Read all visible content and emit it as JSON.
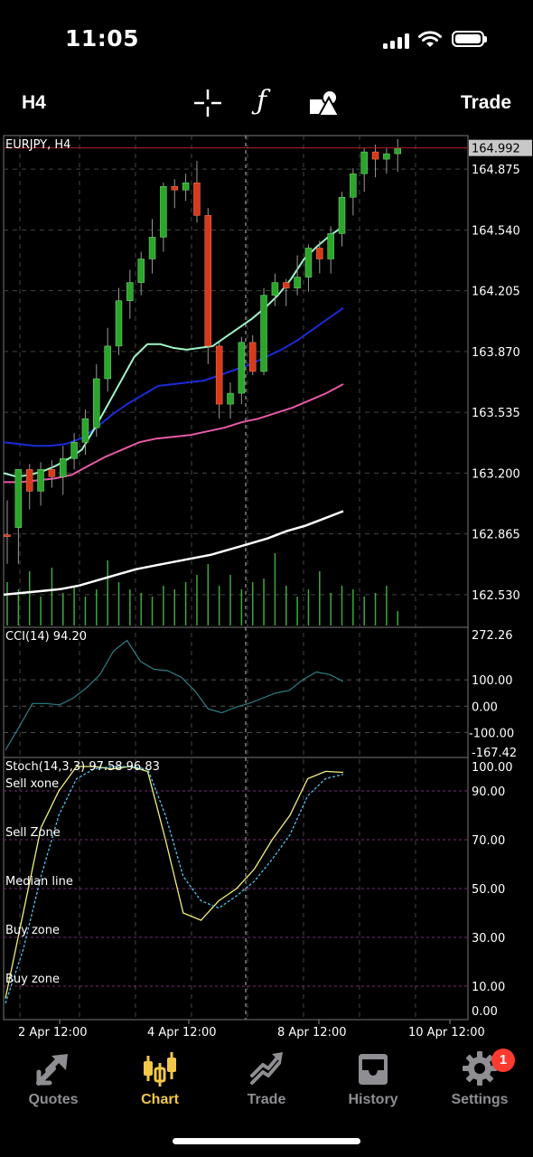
{
  "status": {
    "time": "11:05"
  },
  "toolbar": {
    "timeframe": "H4",
    "trade_label": "Trade",
    "function_label": "ƒ"
  },
  "chart": {
    "symbol_label": "EURJPY, H4",
    "current_price": "164.992",
    "price_ticks": [
      "164.875",
      "164.540",
      "164.205",
      "163.870",
      "163.535",
      "163.200",
      "162.865",
      "162.530"
    ],
    "cci_label": "CCI(14) 94.20",
    "cci_ticks": [
      "272.26",
      "100.00",
      "0.00",
      "-100.00",
      "-167.42"
    ],
    "stoch_label": "Stoch(14,3,3) 97.58 96.83",
    "stoch_ticks": [
      "100.00",
      "90.00",
      "70.00",
      "50.00",
      "30.00",
      "10.00",
      "0.00"
    ],
    "zone_labels": [
      "Sell xone",
      "Sell Zone",
      "Median line",
      "Buy zone",
      "Buy zone"
    ],
    "time_ticks": [
      "2 Apr 12:00",
      "4 Apr 12:00",
      "8 Apr 12:00",
      "10 Apr 12:00"
    ],
    "colors": {
      "bull": "#2ba52b",
      "bear": "#d63a1a",
      "ma_fast": "#9ff5c8",
      "ma_mid": "#1a2bd8",
      "ma_slow": "#e85aa8",
      "ma_long": "#ffffff",
      "volume": "#3fa83f",
      "cci": "#2f7f86",
      "stoch_main": "#f0f07a",
      "stoch_signal": "#4fc0e8",
      "price_line": "#b02020"
    }
  },
  "chart_data": {
    "type": "candlestick",
    "symbol": "EURJPY",
    "timeframe": "H4",
    "ylim": [
      162.35,
      165.06
    ],
    "candles": [
      [
        162.86,
        163.05,
        162.85,
        162.7
      ],
      [
        162.9,
        163.22,
        163.22,
        162.7
      ],
      [
        163.22,
        163.25,
        163.1,
        163.0
      ],
      [
        163.1,
        163.26,
        163.22,
        163.02
      ],
      [
        163.22,
        163.27,
        163.18,
        163.12
      ],
      [
        163.18,
        163.35,
        163.28,
        163.08
      ],
      [
        163.28,
        163.42,
        163.37,
        163.22
      ],
      [
        163.37,
        163.55,
        163.5,
        163.3
      ],
      [
        163.45,
        163.8,
        163.72,
        163.4
      ],
      [
        163.72,
        164.0,
        163.9,
        163.65
      ],
      [
        163.9,
        164.22,
        164.15,
        163.85
      ],
      [
        164.15,
        164.32,
        164.25,
        164.05
      ],
      [
        164.25,
        164.42,
        164.38,
        164.18
      ],
      [
        164.38,
        164.6,
        164.5,
        164.3
      ],
      [
        164.5,
        164.8,
        164.78,
        164.42
      ],
      [
        164.78,
        164.82,
        164.76,
        164.66
      ],
      [
        164.76,
        164.85,
        164.8,
        164.7
      ],
      [
        164.8,
        164.92,
        164.62,
        164.58
      ],
      [
        164.62,
        164.66,
        163.9,
        163.8
      ],
      [
        163.9,
        163.92,
        163.58,
        163.5
      ],
      [
        163.58,
        163.7,
        163.64,
        163.5
      ],
      [
        163.64,
        163.95,
        163.92,
        163.58
      ],
      [
        163.92,
        163.96,
        163.76,
        163.74
      ],
      [
        163.76,
        164.22,
        164.18,
        163.74
      ],
      [
        164.18,
        164.3,
        164.25,
        164.12
      ],
      [
        164.25,
        164.27,
        164.22,
        164.12
      ],
      [
        164.22,
        164.4,
        164.28,
        164.18
      ],
      [
        164.28,
        164.46,
        164.44,
        164.2
      ],
      [
        164.44,
        164.48,
        164.38,
        164.3
      ],
      [
        164.38,
        164.56,
        164.52,
        164.3
      ],
      [
        164.52,
        164.75,
        164.72,
        164.45
      ],
      [
        164.72,
        164.88,
        164.85,
        164.62
      ],
      [
        164.85,
        164.99,
        164.97,
        164.75
      ],
      [
        164.97,
        165.01,
        164.93,
        164.83
      ],
      [
        164.93,
        164.99,
        164.96,
        164.85
      ],
      [
        164.96,
        165.04,
        164.99,
        164.86
      ]
    ],
    "ma_fast": [
      163.2,
      163.18,
      163.19,
      163.21,
      163.24,
      163.28,
      163.33,
      163.45,
      163.58,
      163.71,
      163.84,
      163.91,
      163.91,
      163.89,
      163.88,
      163.89,
      163.9,
      163.95,
      164.0,
      164.05,
      164.11,
      164.18,
      164.27,
      164.38,
      164.45,
      164.51,
      164.56
    ],
    "ma_mid": [
      163.37,
      163.36,
      163.35,
      163.35,
      163.36,
      163.39,
      163.45,
      163.52,
      163.58,
      163.63,
      163.68,
      163.69,
      163.7,
      163.71,
      163.74,
      163.77,
      163.8,
      163.84,
      163.88,
      163.93,
      163.99,
      164.05,
      164.11
    ],
    "ma_slow": [
      163.15,
      163.15,
      163.16,
      163.17,
      163.19,
      163.24,
      163.29,
      163.33,
      163.37,
      163.39,
      163.4,
      163.41,
      163.43,
      163.45,
      163.48,
      163.5,
      163.53,
      163.56,
      163.6,
      163.64,
      163.69
    ],
    "ma_long": [
      162.53,
      162.54,
      162.55,
      162.56,
      162.58,
      162.61,
      162.64,
      162.67,
      162.69,
      162.71,
      162.73,
      162.75,
      162.78,
      162.81,
      162.84,
      162.88,
      162.91,
      162.95,
      162.99
    ],
    "volume": [
      0.6,
      0.5,
      0.75,
      0.4,
      0.8,
      0.45,
      0.55,
      0.4,
      0.5,
      0.9,
      0.6,
      0.5,
      0.45,
      0.4,
      0.55,
      0.5,
      0.6,
      0.7,
      0.85,
      0.55,
      0.7,
      0.5,
      0.6,
      0.65,
      1.0,
      0.55,
      0.4,
      0.5,
      0.75,
      0.45,
      0.55,
      0.5,
      0.4,
      0.45,
      0.55,
      0.2
    ],
    "cci": [
      -167,
      -80,
      10,
      10,
      5,
      30,
      70,
      120,
      210,
      250,
      170,
      140,
      135,
      110,
      60,
      -10,
      -25,
      -5,
      10,
      30,
      50,
      60,
      100,
      130,
      120,
      94
    ],
    "cci_ylim": [
      -167.42,
      272.26
    ],
    "stoch_main": [
      5,
      40,
      75,
      90,
      100,
      100,
      99,
      100,
      98,
      70,
      40,
      37,
      45,
      50,
      58,
      70,
      80,
      95,
      98,
      97.58
    ],
    "stoch_signal": [
      3,
      25,
      55,
      80,
      95,
      99,
      100,
      100,
      99,
      80,
      55,
      45,
      42,
      47,
      53,
      62,
      72,
      88,
      95,
      96.83
    ],
    "stoch_levels": [
      90,
      70,
      50,
      30,
      10
    ],
    "stoch_ylim": [
      0,
      100
    ]
  }
}
